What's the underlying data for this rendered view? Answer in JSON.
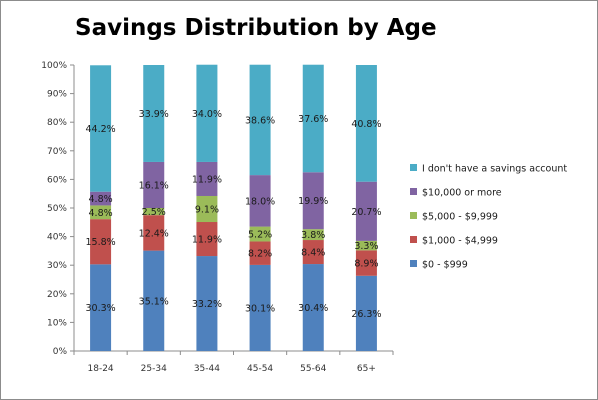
{
  "chart_data": {
    "type": "bar",
    "stacked": true,
    "percent_stacked": true,
    "title": "Savings Distribution by Age",
    "categories": [
      "18-24",
      "25-34",
      "35-44",
      "45-54",
      "55-64",
      "65+"
    ],
    "y_ticks": [
      "0%",
      "10%",
      "20%",
      "30%",
      "40%",
      "50%",
      "60%",
      "70%",
      "80%",
      "90%",
      "100%"
    ],
    "ylim": [
      0,
      100
    ],
    "grid": false,
    "legend_position": "right",
    "series": [
      {
        "name": "$0 - $999",
        "color": "#4f81bd",
        "values": [
          30.3,
          35.1,
          33.2,
          30.1,
          30.4,
          26.3
        ],
        "labels": [
          "30.3%",
          "35.1%",
          "33.2%",
          "30.1%",
          "30.4%",
          "26.3%"
        ]
      },
      {
        "name": "$1,000 - $4,999",
        "color": "#c0504d",
        "values": [
          15.8,
          12.4,
          11.9,
          8.2,
          8.4,
          8.9
        ],
        "labels": [
          "15.8%",
          "12.4%",
          "11.9%",
          "8.2%",
          "8.4%",
          "8.9%"
        ]
      },
      {
        "name": "$5,000 - $9,999",
        "color": "#9bbb59",
        "values": [
          4.8,
          2.5,
          9.1,
          5.2,
          3.8,
          3.3
        ],
        "labels": [
          "4.8%",
          "2.5%",
          "9.1%",
          "5.2%",
          "3.8%",
          "3.3%"
        ]
      },
      {
        "name": "$10,000 or more",
        "color": "#8064a2",
        "values": [
          4.8,
          16.1,
          11.9,
          18.0,
          19.9,
          20.7
        ],
        "labels": [
          "4.8%",
          "16.1%",
          "11.9%",
          "18.0%",
          "19.9%",
          "20.7%"
        ]
      },
      {
        "name": "I don't have a savings account",
        "color": "#4bacc6",
        "values": [
          44.2,
          33.9,
          34.0,
          38.6,
          37.6,
          40.8
        ],
        "labels": [
          "44.2%",
          "33.9%",
          "34.0%",
          "38.6%",
          "37.6%",
          "40.8%"
        ]
      }
    ]
  }
}
